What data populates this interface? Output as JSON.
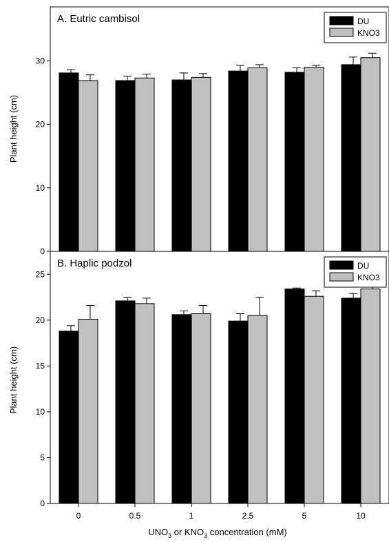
{
  "figure": {
    "ylabel": "Plant height (cm)",
    "xlabel_parts": {
      "a": "UNO",
      "sub1": "3",
      "b": " or KNO",
      "sub2": "3",
      "c": " concentration (mM)"
    }
  },
  "chart_data": [
    {
      "type": "bar",
      "title": "A. Eutric cambisol",
      "categories": [
        "0",
        "0.5",
        "1",
        "2.5",
        "5",
        "10"
      ],
      "ylabel": "Plant height (cm)",
      "ylim": [
        0,
        38.5
      ],
      "yticks": [
        0,
        10,
        20,
        30
      ],
      "legend_position": "top-right",
      "series": [
        {
          "name": "DU",
          "color": "#000000",
          "values": [
            28.1,
            26.9,
            27.0,
            28.4,
            28.2,
            29.4
          ],
          "errors": [
            0.5,
            0.7,
            1.1,
            0.9,
            0.7,
            1.2
          ]
        },
        {
          "name": "KNO3",
          "color": "#c0c0c0",
          "values": [
            26.9,
            27.3,
            27.4,
            28.9,
            29.0,
            30.5
          ],
          "errors": [
            0.9,
            0.6,
            0.6,
            0.5,
            0.3,
            0.7
          ]
        }
      ]
    },
    {
      "type": "bar",
      "title": "B. Haplic podzol",
      "categories": [
        "0",
        "0.5",
        "1",
        "2.5",
        "5",
        "10"
      ],
      "ylabel": "Plant height (cm)",
      "ylim": [
        0,
        27.5
      ],
      "yticks": [
        0,
        5,
        10,
        15,
        20,
        25
      ],
      "legend_position": "top-right",
      "series": [
        {
          "name": "DU",
          "color": "#000000",
          "values": [
            18.8,
            22.1,
            20.6,
            19.9,
            23.4,
            22.4
          ],
          "errors": [
            0.6,
            0.4,
            0.4,
            0.8,
            0.1,
            0.5
          ]
        },
        {
          "name": "KNO3",
          "color": "#c0c0c0",
          "values": [
            20.1,
            21.8,
            20.7,
            20.5,
            22.6,
            23.4
          ],
          "errors": [
            1.5,
            0.6,
            0.9,
            2.0,
            0.6,
            0.4
          ]
        }
      ]
    }
  ]
}
